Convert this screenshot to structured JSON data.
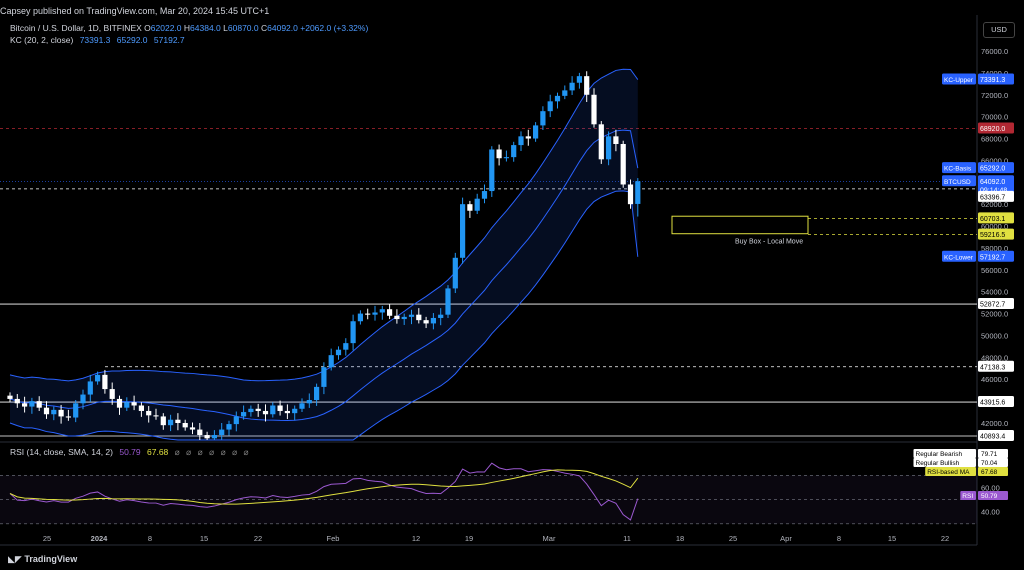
{
  "header": {
    "text": "Capsey published on TradingView.com, Mar 20, 2024 15:45 UTC+1"
  },
  "symbol": {
    "name": "Bitcoin / U.S. Dollar, 1D, BITFINEX",
    "open_label": "O",
    "open": "62022.0",
    "high_label": "H",
    "high": "64384.0",
    "low_label": "L",
    "low": "60870.0",
    "close_label": "C",
    "close": "64092.0",
    "change": "+2062.0 (+3.32%)"
  },
  "kc_indicator": {
    "name": "KC (20, 2, close)",
    "upper": "73391.3",
    "basis": "65292.0",
    "lower": "57192.7"
  },
  "rsi_indicator": {
    "name": "RSI (14, close, SMA, 14, 2)",
    "value": "50.79",
    "ma": "67.68",
    "empty_placeholders": "⌀ ⌀ ⌀ ⌀ ⌀ ⌀ ⌀"
  },
  "currency_button": "USD",
  "price_axis": {
    "labels": [
      "76000.0",
      "74000.0",
      "72000.0",
      "70000.0",
      "68000.0",
      "66000.0",
      "62000.0",
      "60000.0",
      "58000.0",
      "56000.0",
      "54000.0",
      "52000.0",
      "50000.0",
      "48000.0",
      "46000.0",
      "44000.0",
      "42000.0"
    ],
    "tags": [
      {
        "label": "KC-Upper",
        "value": "73391.3",
        "color": "#2962ff"
      },
      {
        "label": "",
        "value": "68920.0",
        "color": "#b22833"
      },
      {
        "label": "KC-Basis",
        "value": "65292.0",
        "color": "#2962ff"
      },
      {
        "label": "BTCUSD",
        "value": "64092.0",
        "sub": "09:14:48",
        "color": "#2962ff"
      },
      {
        "label": "",
        "value": "63396.7",
        "color": "#ffffff"
      },
      {
        "label": "",
        "value": "60703.1",
        "color": "#e0e040"
      },
      {
        "label": "",
        "value": "59216.5",
        "color": "#e0e040"
      },
      {
        "label": "KC-Lower",
        "value": "57192.7",
        "color": "#2962ff"
      },
      {
        "label": "",
        "value": "52872.7",
        "color": "#ffffff"
      },
      {
        "label": "",
        "value": "47138.3",
        "color": "#ffffff"
      },
      {
        "label": "",
        "value": "43915.6",
        "color": "#ffffff"
      },
      {
        "label": "",
        "value": "40893.4",
        "color": "#ffffff"
      }
    ]
  },
  "rsi_axis": {
    "labels": [
      "60.00",
      "40.00"
    ],
    "tags": [
      {
        "label": "Regular Bearish",
        "value": "79.71"
      },
      {
        "label": "Regular Bullish",
        "value": "70.04"
      },
      {
        "label": "RSI-based MA",
        "value": "67.68",
        "color": "#e0e040"
      },
      {
        "label": "RSI",
        "value": "50.79",
        "color": "#9b59d0"
      }
    ]
  },
  "time_axis": [
    "25",
    "2024",
    "8",
    "15",
    "22",
    "Feb",
    "12",
    "19",
    "Mar",
    "11",
    "18",
    "25",
    "Apr",
    "8",
    "15",
    "22"
  ],
  "annotation": "Buy Box - Local Move",
  "footer": "TradingView",
  "colors": {
    "up": "#2196f3",
    "down": "#ffffff",
    "kc": "#2962ff",
    "bg": "#000000"
  }
}
